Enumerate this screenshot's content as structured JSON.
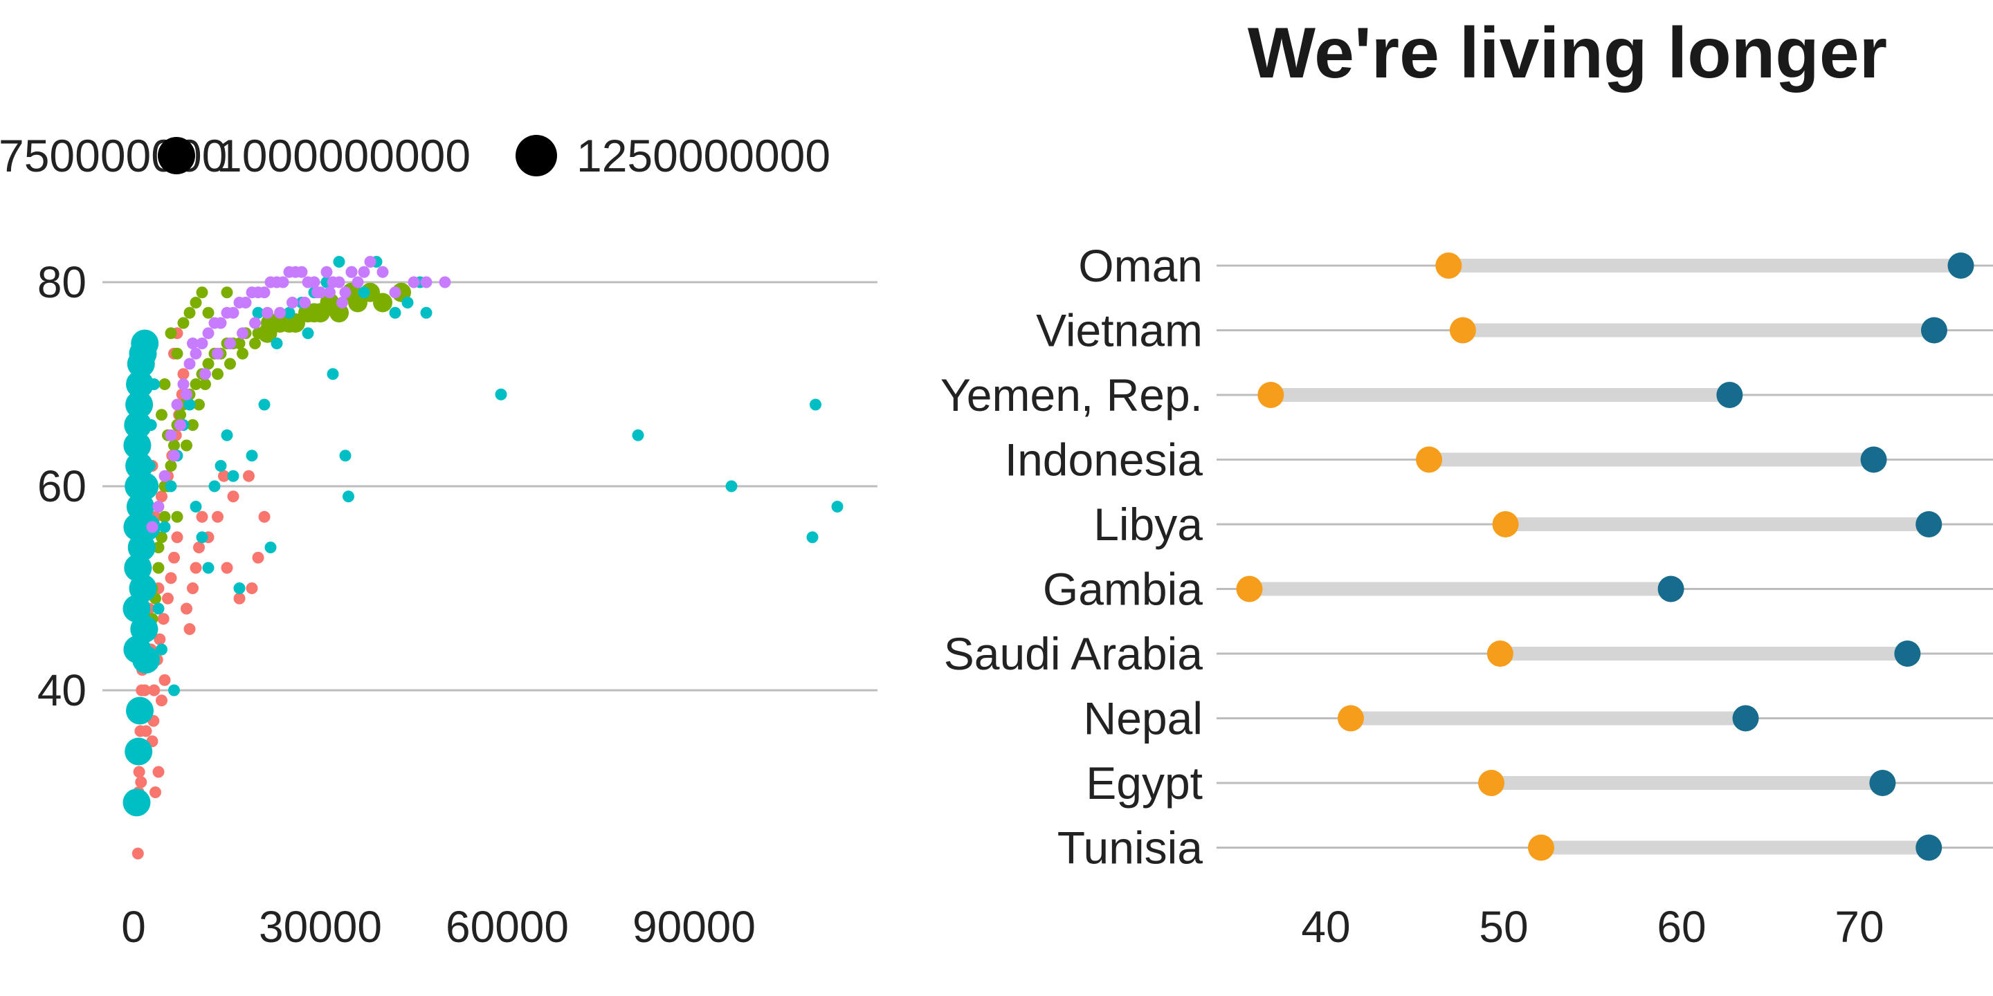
{
  "chart_data": [
    {
      "type": "scatter",
      "title": "",
      "xlabel": "",
      "ylabel": "",
      "xlim": [
        -2000,
        118000
      ],
      "ylim": [
        20,
        90
      ],
      "x_ticks": [
        0,
        30000,
        60000,
        90000
      ],
      "x_tick_labels": [
        "0",
        "30000",
        "60000",
        "90000"
      ],
      "y_ticks": [
        40,
        60,
        80
      ],
      "y_tick_labels": [
        "40",
        "60",
        "80"
      ],
      "grid": "horizontal",
      "legend": {
        "placement": "top",
        "title": "",
        "size_entries": [
          {
            "label": "750000000",
            "value": 750000000
          },
          {
            "label": "1000000000",
            "value": 1000000000
          },
          {
            "label": "1250000000",
            "value": 1250000000
          }
        ]
      },
      "series": [
        {
          "color": "#F8766D",
          "points": [
            [
              700,
              24
            ],
            [
              800,
              30
            ],
            [
              900,
              32
            ],
            [
              1000,
              34
            ],
            [
              1100,
              36
            ],
            [
              1200,
              38
            ],
            [
              1300,
              40
            ],
            [
              1400,
              42
            ],
            [
              1500,
              44
            ],
            [
              1600,
              46
            ],
            [
              1700,
              48
            ],
            [
              1500,
              50
            ],
            [
              2000,
              52
            ],
            [
              1800,
              54
            ],
            [
              2200,
              56
            ],
            [
              2500,
              58
            ],
            [
              900,
              60
            ],
            [
              3000,
              62
            ],
            [
              3500,
              30
            ],
            [
              4000,
              32
            ],
            [
              3000,
              35
            ],
            [
              3200,
              37
            ],
            [
              4500,
              39
            ],
            [
              5000,
              41
            ],
            [
              3800,
              43
            ],
            [
              4200,
              45
            ],
            [
              4800,
              47
            ],
            [
              5500,
              49
            ],
            [
              6000,
              51
            ],
            [
              6500,
              53
            ],
            [
              7000,
              55
            ],
            [
              3500,
              57
            ],
            [
              4500,
              59
            ],
            [
              5500,
              61
            ],
            [
              6200,
              63
            ],
            [
              6800,
              65
            ],
            [
              7300,
              67
            ],
            [
              7800,
              69
            ],
            [
              8000,
              71
            ],
            [
              6500,
              73
            ],
            [
              7000,
              75
            ],
            [
              8500,
              48
            ],
            [
              9000,
              46
            ],
            [
              9500,
              50
            ],
            [
              10000,
              52
            ],
            [
              10500,
              54
            ],
            [
              11000,
              57
            ],
            [
              12000,
              55
            ],
            [
              13500,
              57
            ],
            [
              15000,
              52
            ],
            [
              17000,
              49
            ],
            [
              18500,
              61
            ],
            [
              20000,
              53
            ],
            [
              21000,
              57
            ],
            [
              19000,
              50
            ],
            [
              16000,
              59
            ],
            [
              14500,
              61
            ],
            [
              2500,
              48
            ],
            [
              2800,
              44
            ],
            [
              3300,
              40
            ],
            [
              1200,
              31
            ],
            [
              2000,
              36
            ],
            [
              1800,
              40
            ],
            [
              2400,
              43
            ],
            [
              3000,
              46
            ],
            [
              4000,
              50
            ]
          ]
        },
        {
          "color": "#7CAE00",
          "points": [
            [
              3000,
              47
            ],
            [
              3500,
              49
            ],
            [
              4000,
              52
            ],
            [
              4500,
              55
            ],
            [
              5000,
              57
            ],
            [
              5500,
              60
            ],
            [
              6000,
              62
            ],
            [
              6500,
              64
            ],
            [
              7000,
              66
            ],
            [
              7500,
              67
            ],
            [
              8000,
              68
            ],
            [
              9000,
              69
            ],
            [
              10000,
              70
            ],
            [
              11000,
              71
            ],
            [
              12000,
              72
            ],
            [
              13000,
              73
            ],
            [
              14000,
              73
            ],
            [
              15000,
              74
            ],
            [
              16000,
              74
            ],
            [
              17000,
              74
            ],
            [
              18000,
              75
            ],
            [
              20000,
              75
            ],
            [
              22000,
              76
            ],
            [
              25000,
              76
            ],
            [
              28000,
              77
            ],
            [
              30000,
              77
            ],
            [
              33000,
              77
            ],
            [
              36000,
              78
            ],
            [
              40000,
              78
            ],
            [
              43000,
              79
            ],
            [
              8000,
              76
            ],
            [
              9000,
              77
            ],
            [
              10000,
              78
            ],
            [
              11000,
              79
            ],
            [
              12000,
              77
            ],
            [
              6000,
              75
            ],
            [
              7000,
              73
            ],
            [
              5000,
              70
            ],
            [
              4500,
              67
            ],
            [
              5500,
              65
            ],
            [
              6500,
              63
            ],
            [
              8500,
              64
            ],
            [
              9500,
              66
            ],
            [
              10500,
              68
            ],
            [
              11500,
              70
            ],
            [
              13500,
              71
            ],
            [
              15500,
              72
            ],
            [
              17500,
              73
            ],
            [
              19500,
              74
            ],
            [
              21500,
              75
            ],
            [
              23500,
              76
            ],
            [
              26000,
              76
            ],
            [
              29000,
              77
            ],
            [
              31500,
              78
            ],
            [
              35000,
              79
            ],
            [
              38000,
              79
            ],
            [
              15000,
              79
            ],
            [
              4000,
              54
            ],
            [
              3000,
              50
            ],
            [
              2500,
              46
            ],
            [
              5000,
              60
            ],
            [
              7000,
              57
            ]
          ]
        },
        {
          "color": "#00BFC4",
          "points": [
            [
              500,
              29
            ],
            [
              800,
              34
            ],
            [
              1000,
              38
            ],
            [
              600,
              44
            ],
            [
              500,
              48
            ],
            [
              700,
              52
            ],
            [
              600,
              56
            ],
            [
              800,
              60
            ],
            [
              600,
              64
            ],
            [
              900,
              68
            ],
            [
              1000,
              70
            ],
            [
              1200,
              72
            ],
            [
              1500,
              73
            ],
            [
              1800,
              74
            ],
            [
              700,
              66
            ],
            [
              900,
              62
            ],
            [
              1100,
              58
            ],
            [
              1300,
              54
            ],
            [
              1500,
              50
            ],
            [
              1700,
              46
            ],
            [
              2000,
              43
            ],
            [
              4000,
              48
            ],
            [
              5000,
              56
            ],
            [
              6000,
              60
            ],
            [
              7000,
              63
            ],
            [
              8000,
              66
            ],
            [
              9000,
              68
            ],
            [
              10000,
              58
            ],
            [
              11000,
              55
            ],
            [
              12000,
              52
            ],
            [
              13000,
              60
            ],
            [
              14000,
              62
            ],
            [
              15000,
              65
            ],
            [
              16000,
              61
            ],
            [
              17000,
              50
            ],
            [
              19000,
              63
            ],
            [
              21000,
              68
            ],
            [
              22000,
              54
            ],
            [
              25000,
              77
            ],
            [
              27000,
              78
            ],
            [
              29000,
              79
            ],
            [
              31000,
              80
            ],
            [
              33000,
              82
            ],
            [
              35000,
              81
            ],
            [
              37000,
              79
            ],
            [
              39000,
              82
            ],
            [
              42000,
              77
            ],
            [
              44000,
              78
            ],
            [
              46000,
              80
            ],
            [
              47000,
              77
            ],
            [
              32000,
              71
            ],
            [
              34000,
              63
            ],
            [
              34500,
              59
            ],
            [
              59000,
              69
            ],
            [
              81000,
              65
            ],
            [
              96000,
              60
            ],
            [
              109000,
              55
            ],
            [
              109500,
              68
            ],
            [
              113000,
              58
            ],
            [
              20000,
              77
            ],
            [
              23000,
              74
            ],
            [
              28000,
              75
            ],
            [
              4500,
              44
            ],
            [
              6500,
              40
            ],
            [
              2800,
              66
            ],
            [
              3300,
              70
            ],
            [
              2600,
              62
            ],
            [
              1800,
              60
            ],
            [
              2100,
              56
            ]
          ]
        },
        {
          "color": "#C77CFF",
          "points": [
            [
              3000,
              56
            ],
            [
              4000,
              58
            ],
            [
              5000,
              61
            ],
            [
              6000,
              65
            ],
            [
              7000,
              68
            ],
            [
              8000,
              70
            ],
            [
              9000,
              72
            ],
            [
              10000,
              73
            ],
            [
              11000,
              74
            ],
            [
              12000,
              75
            ],
            [
              13000,
              76
            ],
            [
              14000,
              76
            ],
            [
              15000,
              77
            ],
            [
              16000,
              77
            ],
            [
              17000,
              78
            ],
            [
              18000,
              78
            ],
            [
              19000,
              79
            ],
            [
              20000,
              79
            ],
            [
              21000,
              79
            ],
            [
              22000,
              80
            ],
            [
              23000,
              80
            ],
            [
              24000,
              80
            ],
            [
              25000,
              81
            ],
            [
              26000,
              81
            ],
            [
              27000,
              81
            ],
            [
              28000,
              80
            ],
            [
              29000,
              80
            ],
            [
              30000,
              79
            ],
            [
              31000,
              81
            ],
            [
              32000,
              80
            ],
            [
              33000,
              80
            ],
            [
              34000,
              79
            ],
            [
              35000,
              81
            ],
            [
              36000,
              80
            ],
            [
              37000,
              81
            ],
            [
              38000,
              82
            ],
            [
              40000,
              81
            ],
            [
              42000,
              79
            ],
            [
              45000,
              80
            ],
            [
              47000,
              80
            ],
            [
              50000,
              80
            ],
            [
              9500,
              74
            ],
            [
              11500,
              71
            ],
            [
              13500,
              73
            ],
            [
              15500,
              74
            ],
            [
              17500,
              75
            ],
            [
              19500,
              76
            ],
            [
              21500,
              77
            ],
            [
              23500,
              77
            ],
            [
              25500,
              78
            ],
            [
              27500,
              78
            ],
            [
              29500,
              79
            ],
            [
              31500,
              79
            ],
            [
              33500,
              78
            ],
            [
              6500,
              63
            ],
            [
              7500,
              66
            ],
            [
              8500,
              69
            ]
          ]
        }
      ]
    },
    {
      "type": "dumbbell",
      "title": "We're living longer",
      "xlabel": "",
      "ylabel": "",
      "xlim": [
        33.5,
        77
      ],
      "x_ticks": [
        40,
        50,
        60,
        70
      ],
      "x_tick_labels": [
        "40",
        "50",
        "60",
        "70"
      ],
      "grid": "horizontal",
      "colors": {
        "start": "#F69D1C",
        "end": "#176C8E",
        "segment": "#D5D5D5",
        "grid": "#BDBDBD"
      },
      "categories": [
        "Oman",
        "Vietnam",
        "Yemen, Rep.",
        "Indonesia",
        "Libya",
        "Gambia",
        "Saudi Arabia",
        "Nepal",
        "Egypt",
        "Tunisia"
      ],
      "series": [
        {
          "values": [
            46.9,
            47.7,
            36.9,
            45.8,
            50.1,
            35.7,
            49.8,
            41.4,
            49.3,
            52.1
          ]
        },
        {
          "values": [
            75.7,
            74.2,
            62.7,
            70.8,
            73.9,
            59.4,
            72.7,
            63.6,
            71.3,
            73.9
          ]
        }
      ]
    }
  ]
}
